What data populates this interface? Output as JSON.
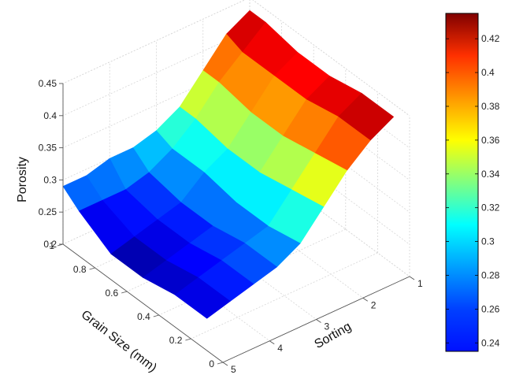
{
  "chart_data": {
    "type": "surface3d",
    "title": "",
    "xlabel": "Sorting",
    "ylabel": "Grain Size (mm)",
    "zlabel": "Porosity",
    "x_ticks": [
      "1",
      "2",
      "3",
      "4",
      "5"
    ],
    "y_ticks": [
      "0",
      "0.2",
      "0.4",
      "0.6",
      "0.8",
      "1"
    ],
    "z_ticks": [
      "0.2",
      "0.25",
      "0.3",
      "0.35",
      "0.4",
      "0.45"
    ],
    "xlim": [
      1,
      5
    ],
    "ylim": [
      0,
      1
    ],
    "zlim": [
      0.2,
      0.45
    ],
    "grid": true,
    "colormap": "jet",
    "colorbar": {
      "range": [
        0.235,
        0.435
      ],
      "ticks": [
        "0.24",
        "0.26",
        "0.28",
        "0.3",
        "0.32",
        "0.34",
        "0.36",
        "0.38",
        "0.4",
        "0.42"
      ]
    },
    "sorting": [
      1,
      1.5,
      2,
      2.5,
      3,
      3.5,
      4,
      4.5,
      5
    ],
    "grain_size": [
      0.1,
      0.3,
      0.5,
      0.7,
      0.9,
      1.0
    ],
    "porosity": [
      [
        0.43,
        0.41,
        0.38,
        0.34,
        0.3,
        0.28,
        0.27,
        0.26,
        0.25
      ],
      [
        0.43,
        0.41,
        0.37,
        0.33,
        0.29,
        0.28,
        0.27,
        0.26,
        0.25
      ],
      [
        0.42,
        0.4,
        0.36,
        0.32,
        0.29,
        0.27,
        0.26,
        0.25,
        0.24
      ],
      [
        0.42,
        0.4,
        0.36,
        0.32,
        0.3,
        0.27,
        0.26,
        0.25,
        0.24
      ],
      [
        0.43,
        0.4,
        0.37,
        0.33,
        0.3,
        0.28,
        0.27,
        0.27,
        0.27
      ],
      [
        0.43,
        0.41,
        0.37,
        0.33,
        0.31,
        0.3,
        0.3,
        0.29,
        0.29
      ]
    ]
  }
}
